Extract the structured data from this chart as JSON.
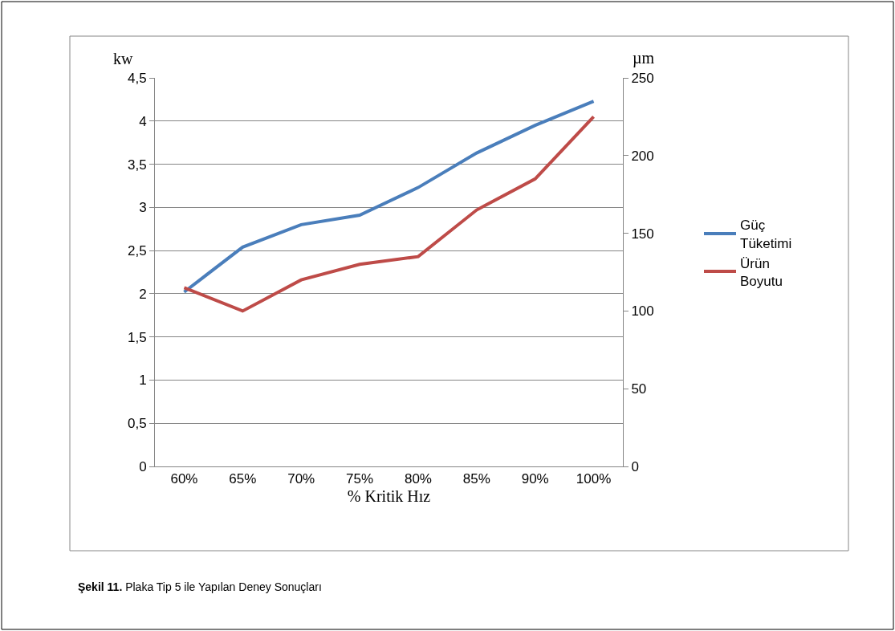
{
  "chart_data": {
    "type": "line",
    "xlabel": "% Kritik Hız",
    "ylabel": "kw",
    "y2label": "µm",
    "categories": [
      "60%",
      "65%",
      "70%",
      "75%",
      "80%",
      "85%",
      "90%",
      "100%"
    ],
    "series": [
      {
        "name": "Güç Tüketimi",
        "color": "#4a7ebb",
        "values": [
          2.02,
          2.54,
          2.8,
          2.91,
          3.23,
          3.63,
          3.95,
          4.23
        ]
      },
      {
        "name": "Ürün Boyutu",
        "color": "#be4b48",
        "axis": "y2",
        "values": [
          115,
          100,
          120,
          130,
          135,
          165,
          185,
          225
        ]
      }
    ],
    "ylim": [
      0,
      4.5
    ],
    "yticks": [
      0,
      {
        "value": 0.5,
        "label": "0,5"
      },
      1,
      {
        "value": 1.5,
        "label": "1,5"
      },
      2,
      {
        "value": 2.5,
        "label": "2,5"
      },
      3,
      {
        "value": 3.5,
        "label": "3,5"
      },
      4,
      {
        "value": 4.5,
        "label": "4,5"
      }
    ],
    "y2lim": [
      0,
      250
    ],
    "y2ticks": [
      0,
      50,
      100,
      150,
      200,
      250
    ],
    "grid": "y",
    "legend": "right",
    "marker": "none",
    "line_style": "solid",
    "annotations": [
      "Şekil 11. Plaka Tip 5 ile Yapılan Deney Sonuçları"
    ]
  }
}
